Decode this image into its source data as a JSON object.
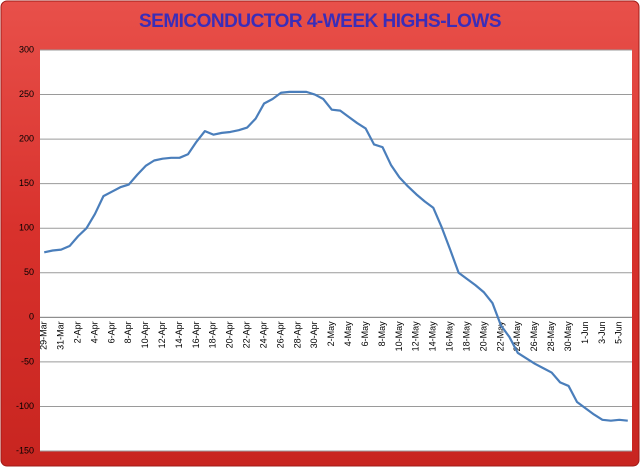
{
  "chart_data": {
    "type": "line",
    "title": "SEMICONDUCTOR 4-WEEK HIGHS-LOWS",
    "categories": [
      "29-Mar",
      null,
      "31-Mar",
      null,
      "2-Apr",
      null,
      "4-Apr",
      null,
      "6-Apr",
      null,
      "8-Apr",
      null,
      "10-Apr",
      null,
      "12-Apr",
      null,
      "14-Apr",
      null,
      "16-Apr",
      null,
      "18-Apr",
      null,
      "20-Apr",
      null,
      "22-Apr",
      null,
      "24-Apr",
      null,
      "26-Apr",
      null,
      "28-Apr",
      null,
      "30-Apr",
      null,
      "2-May",
      null,
      "4-May",
      null,
      "6-May",
      null,
      "8-May",
      null,
      "10-May",
      null,
      "12-May",
      null,
      "14-May",
      null,
      "16-May",
      null,
      "18-May",
      null,
      "20-May",
      null,
      "22-May",
      null,
      "24-May",
      null,
      "26-May",
      null,
      "28-May",
      null,
      "30-May",
      null,
      "1-Jun",
      null,
      "3-Jun",
      null,
      "5-Jun",
      null
    ],
    "values": [
      73,
      75,
      76,
      80,
      91,
      100,
      116,
      136,
      141,
      146,
      149,
      160,
      170,
      176,
      178,
      179,
      179,
      183,
      197,
      209,
      205,
      207,
      208,
      210,
      213,
      223,
      240,
      245,
      252,
      253,
      253,
      253,
      250,
      245,
      233,
      232,
      225,
      218,
      212,
      194,
      191,
      171,
      157,
      147,
      138,
      130,
      123,
      101,
      76,
      50,
      43,
      36,
      28,
      16,
      -9,
      -22,
      -40,
      -46,
      -52,
      -57,
      -62,
      -73,
      -77,
      -95,
      -102,
      -109,
      -115,
      -116,
      -115,
      -116
    ],
    "color": "#4a7ebb",
    "ylim": [
      -150,
      300
    ],
    "yticks": [
      -150,
      -100,
      -50,
      0,
      50,
      100,
      150,
      200,
      250,
      300
    ],
    "grid": true
  }
}
